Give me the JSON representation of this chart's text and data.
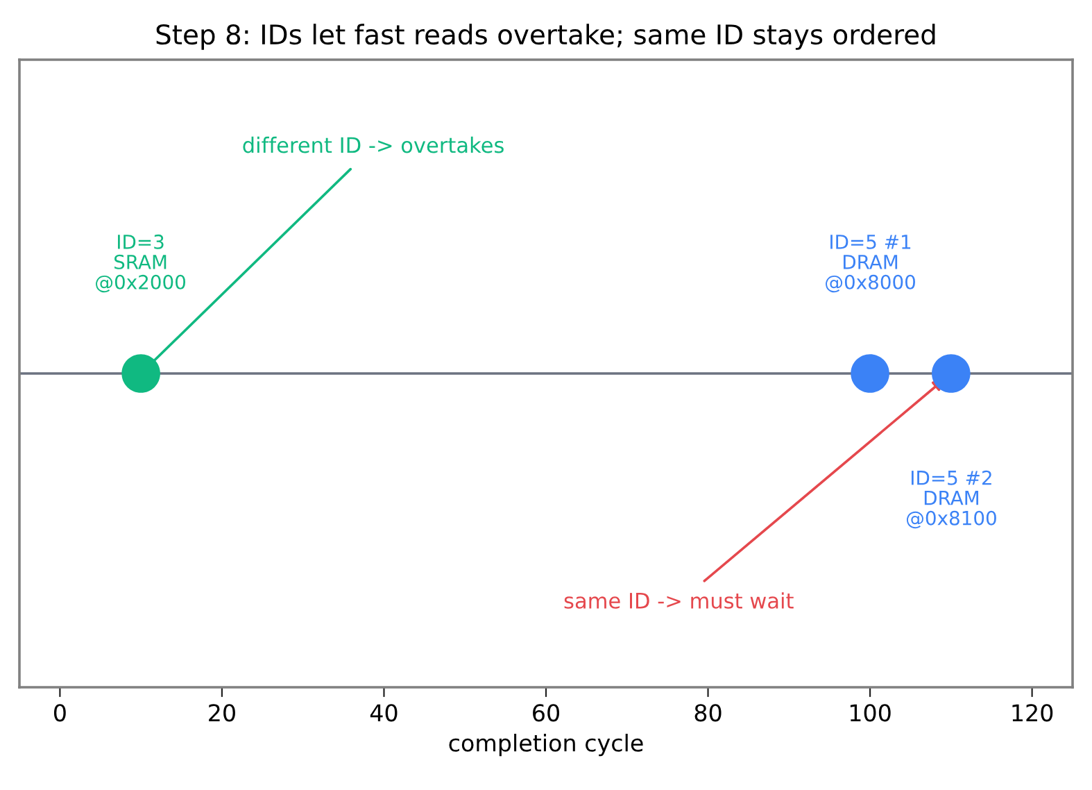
{
  "chart_data": {
    "type": "scatter",
    "orientation": "horizontal",
    "title": "Step 8: IDs let fast reads overtake; same ID stays ordered",
    "xlabel": "completion cycle",
    "categories": [
      null
    ],
    "series": [
      {
        "color": "#10b981",
        "values": [
          10
        ]
      },
      {
        "color": "#3b82f6",
        "values": [
          100
        ]
      },
      {
        "color": "#3b82f6",
        "values": [
          110
        ]
      }
    ],
    "annotations": [
      "different ID -> overtakes",
      "ID=3\nSRAM\n@0x2000",
      "ID=5 #1\nDRAM\n@0x8000",
      "ID=5 #2\nDRAM\n@0x8100",
      "same ID -> must wait"
    ],
    "xlim": [
      -5,
      125
    ],
    "xticks": [
      0,
      20,
      40,
      60,
      80,
      100,
      120
    ],
    "tick_labels": "x",
    "legend": false,
    "marker": "circle"
  }
}
